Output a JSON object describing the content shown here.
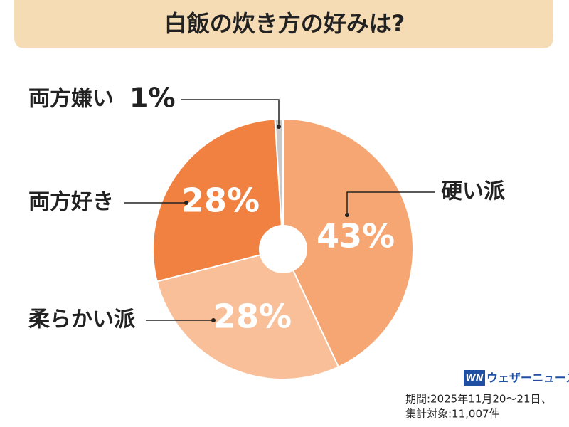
{
  "chart_data": {
    "type": "pie",
    "title": "白飯の炊き方の好みは?",
    "categories": [
      "硬い派",
      "柔らかい派",
      "両方好き",
      "両方嫌い"
    ],
    "values": [
      43,
      28,
      28,
      1
    ],
    "value_labels": [
      "43%",
      "28%",
      "28%",
      "1%"
    ],
    "colors": [
      "#f5a673",
      "#f8bf99",
      "#f08140",
      "#c9c9c9"
    ],
    "source_logo": "WN",
    "source": "ウェザーニュース",
    "notes": [
      "期間:2025年11月20〜21日、",
      "集計対象:11,007件"
    ]
  }
}
